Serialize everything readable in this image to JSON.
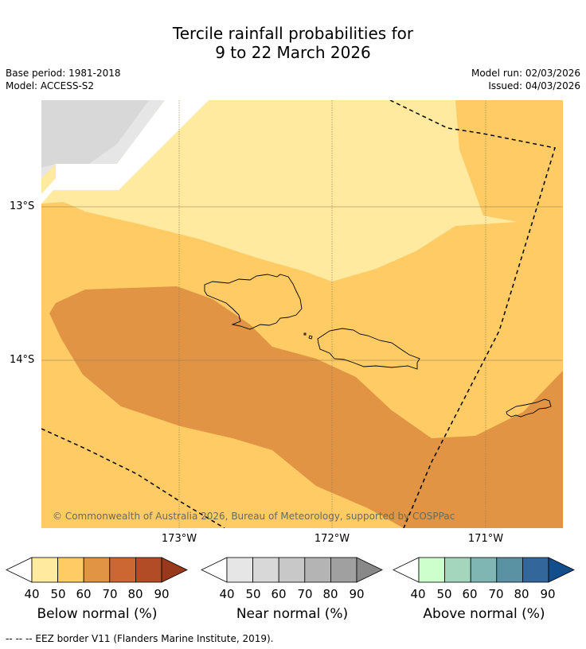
{
  "title": {
    "line1": "Tercile rainfall probabilities for",
    "line2": "9 to 22 March 2026"
  },
  "meta": {
    "base_period": "Base period: 1981-2018",
    "model": "Model: ACCESS-S2",
    "model_run": "Model run: 02/03/2026",
    "issued": "Issued: 04/03/2026"
  },
  "map": {
    "lat_labels": [
      "13°S",
      "14°S"
    ],
    "lon_labels": [
      "173°W",
      "172°W",
      "171°W"
    ],
    "copyright": "© Commonwealth of Australia 2026, Bureau of Meteorology, supported by COSPPac",
    "colors": {
      "below_40_50": "#ffeaa0",
      "below_50_60": "#fecb65",
      "below_60_70": "#e09444",
      "near_50_60": "#d8d8d8",
      "near_40_50": "#e6e6e6",
      "grid": "#8a7a4a",
      "coast": "#000000",
      "eez": "#000000"
    }
  },
  "colorbars": [
    {
      "title": "Below normal (%)",
      "ticks": [
        "40",
        "50",
        "60",
        "70",
        "80",
        "90"
      ],
      "colors": [
        "#ffeaa0",
        "#fecb65",
        "#e09444",
        "#cc6633",
        "#b24c26",
        "#98391c"
      ]
    },
    {
      "title": "Near normal (%)",
      "ticks": [
        "40",
        "50",
        "60",
        "70",
        "80",
        "90"
      ],
      "colors": [
        "#e6e6e6",
        "#d8d8d8",
        "#c8c8c8",
        "#b4b4b4",
        "#a0a0a0",
        "#888888"
      ]
    },
    {
      "title": "Above normal (%)",
      "ticks": [
        "40",
        "50",
        "60",
        "70",
        "80",
        "90"
      ],
      "colors": [
        "#ccffcc",
        "#a3d6bd",
        "#7fb5b2",
        "#5a91a3",
        "#33669b",
        "#124e8c"
      ]
    }
  ],
  "footnote": "--  --  -- EEZ border V11 (Flanders Marine Institute, 2019)."
}
